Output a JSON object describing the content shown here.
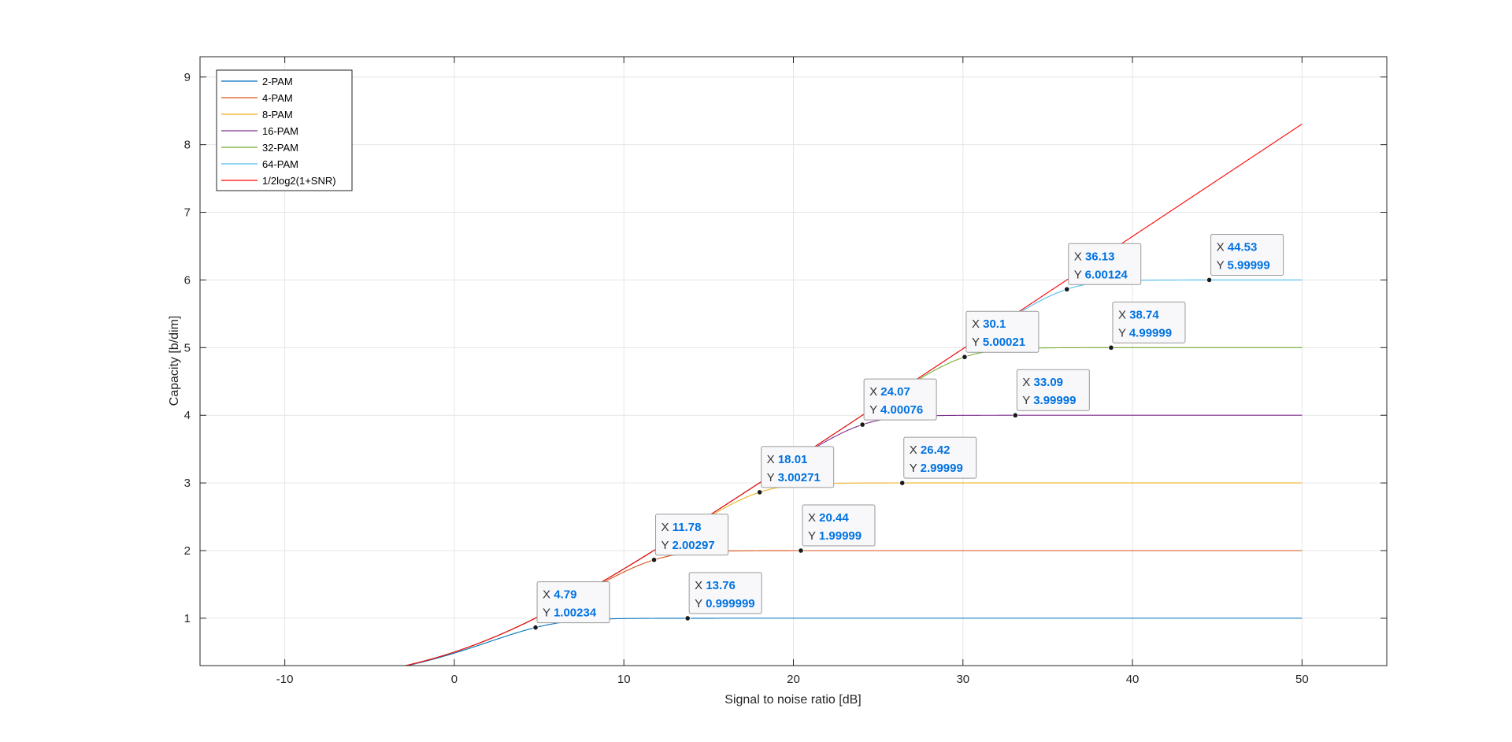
{
  "chart_data": {
    "type": "line",
    "title": "",
    "xlabel": "Signal to noise ratio [dB]",
    "ylabel": "Capacity [b/dim]",
    "xlim": [
      -15,
      55
    ],
    "ylim": [
      0.3,
      9.3
    ],
    "xticks": [
      -10,
      0,
      10,
      20,
      30,
      40,
      50
    ],
    "yticks": [
      1,
      2,
      3,
      4,
      5,
      6,
      7,
      8,
      9
    ],
    "grid": true,
    "legend_position": "top-left",
    "x_range": [
      -3,
      50
    ],
    "series": [
      {
        "name": "2-PAM",
        "bits": 1,
        "color": "#0072BD"
      },
      {
        "name": "4-PAM",
        "bits": 2,
        "color": "#D95319"
      },
      {
        "name": "8-PAM",
        "bits": 3,
        "color": "#EDB120"
      },
      {
        "name": "16-PAM",
        "bits": 4,
        "color": "#7E2F8E"
      },
      {
        "name": "32-PAM",
        "bits": 5,
        "color": "#77AC30"
      },
      {
        "name": "64-PAM",
        "bits": 6,
        "color": "#4DBEEE"
      },
      {
        "name": "1/2log2(1+SNR)",
        "bits": null,
        "color": "#FF0000"
      }
    ],
    "datatips": [
      {
        "x": "4.79",
        "y": "1.00234"
      },
      {
        "x": "13.76",
        "y": "0.999999"
      },
      {
        "x": "11.78",
        "y": "2.00297"
      },
      {
        "x": "20.44",
        "y": "1.99999"
      },
      {
        "x": "18.01",
        "y": "3.00271"
      },
      {
        "x": "26.42",
        "y": "2.99999"
      },
      {
        "x": "24.07",
        "y": "4.00076"
      },
      {
        "x": "33.09",
        "y": "3.99999"
      },
      {
        "x": "30.1",
        "y": "5.00021"
      },
      {
        "x": "38.74",
        "y": "4.99999"
      },
      {
        "x": "36.13",
        "y": "6.00124"
      },
      {
        "x": "44.53",
        "y": "5.99999"
      }
    ],
    "datatip_x_label": "X",
    "datatip_y_label": "Y"
  }
}
